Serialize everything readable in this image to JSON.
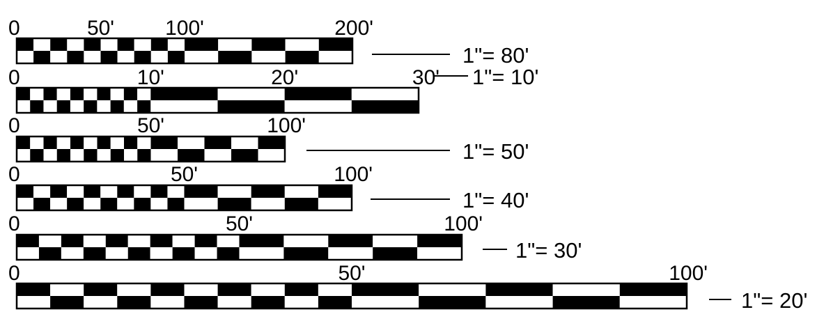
{
  "scales": [
    {
      "id": "scale-80",
      "ticks": [
        {
          "text": "0",
          "at": 0
        },
        {
          "text": "50'",
          "at": 50
        },
        {
          "text": "100'",
          "at": 100
        },
        {
          "text": "200'",
          "at": 200
        }
      ],
      "max": 200,
      "fine_until": 100,
      "fine_step": 10,
      "coarse_step": 20,
      "ratio": "1\"= 80'"
    },
    {
      "id": "scale-10",
      "ticks": [
        {
          "text": "0",
          "at": 0
        },
        {
          "text": "10'",
          "at": 10
        },
        {
          "text": "20'",
          "at": 20
        },
        {
          "text": "30'",
          "at": 30
        }
      ],
      "max": 30,
      "fine_until": 10,
      "fine_step": 1,
      "coarse_step": 5,
      "ratio": "1\"= 10'"
    },
    {
      "id": "scale-50",
      "ticks": [
        {
          "text": "0",
          "at": 0
        },
        {
          "text": "50'",
          "at": 50
        },
        {
          "text": "100'",
          "at": 100
        }
      ],
      "max": 100,
      "fine_until": 50,
      "fine_step": 5,
      "coarse_step": 10,
      "ratio": "1\"= 50'"
    },
    {
      "id": "scale-40",
      "ticks": [
        {
          "text": "0",
          "at": 0
        },
        {
          "text": "50'",
          "at": 50
        },
        {
          "text": "100'",
          "at": 100
        }
      ],
      "max": 100,
      "fine_until": 50,
      "fine_step": 5,
      "coarse_step": 10,
      "ratio": "1\"= 40'"
    },
    {
      "id": "scale-30",
      "ticks": [
        {
          "text": "0",
          "at": 0
        },
        {
          "text": "50'",
          "at": 50
        },
        {
          "text": "100'",
          "at": 100
        }
      ],
      "max": 100,
      "fine_until": 50,
      "fine_step": 5,
      "coarse_step": 10,
      "ratio": "1\"= 30'"
    },
    {
      "id": "scale-20",
      "ticks": [
        {
          "text": "0",
          "at": 0
        },
        {
          "text": "50'",
          "at": 50
        },
        {
          "text": "100'",
          "at": 100
        }
      ],
      "max": 100,
      "fine_until": 50,
      "fine_step": 5,
      "coarse_step": 10,
      "ratio": "1\"= 20'"
    }
  ]
}
